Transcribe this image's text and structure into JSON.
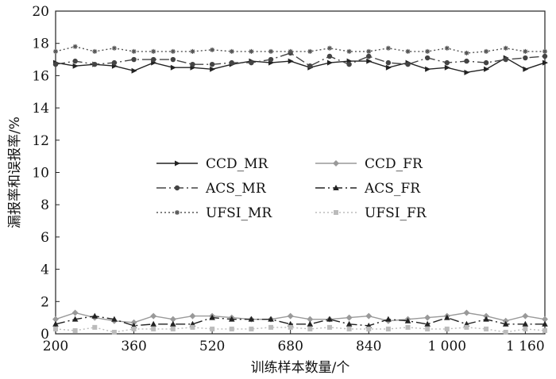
{
  "chart_data": {
    "type": "line",
    "xlabel": "训练样本数量/个",
    "ylabel": "漏报率和误报率/%",
    "xlim": [
      200,
      1200
    ],
    "ylim": [
      0,
      20
    ],
    "x_ticks": [
      200,
      360,
      520,
      680,
      840,
      1000,
      1160
    ],
    "x_tick_labels": [
      "200",
      "360",
      "520",
      "680",
      "840",
      "1 000",
      "1 160"
    ],
    "y_ticks": [
      0,
      2,
      4,
      6,
      8,
      10,
      12,
      14,
      16,
      18,
      20
    ],
    "y_tick_labels": [
      "0",
      "2",
      "4",
      "6",
      "8",
      "10",
      "12",
      "14",
      "16",
      "18",
      "20"
    ],
    "grid": false,
    "legend_position": "center-left",
    "x": [
      200,
      240,
      280,
      320,
      360,
      400,
      440,
      480,
      520,
      560,
      600,
      640,
      680,
      720,
      760,
      800,
      840,
      880,
      920,
      960,
      1000,
      1040,
      1080,
      1120,
      1160,
      1200
    ],
    "series": [
      {
        "name": "CCD_MR",
        "color": "#222222",
        "dash": "",
        "marker": "tri-right",
        "values": [
          16.8,
          16.6,
          16.7,
          16.6,
          16.3,
          16.8,
          16.5,
          16.5,
          16.4,
          16.7,
          16.9,
          16.8,
          16.9,
          16.5,
          16.8,
          16.9,
          16.9,
          16.5,
          16.8,
          16.4,
          16.5,
          16.2,
          16.4,
          17.1,
          16.4,
          16.8
        ]
      },
      {
        "name": "CCD_FR",
        "color": "#999999",
        "dash": "",
        "marker": "diamond",
        "values": [
          0.9,
          1.3,
          1.0,
          0.8,
          0.7,
          1.1,
          0.9,
          1.1,
          1.1,
          1.0,
          0.9,
          0.9,
          1.1,
          0.9,
          0.9,
          1.0,
          1.1,
          0.8,
          0.9,
          1.0,
          1.1,
          1.3,
          1.1,
          0.8,
          1.1,
          0.9
        ]
      },
      {
        "name": "ACS_MR",
        "color": "#444444",
        "dash": "12,4,2,4",
        "marker": "circle",
        "values": [
          16.7,
          16.9,
          16.7,
          16.8,
          17.0,
          17.0,
          17.0,
          16.7,
          16.7,
          16.8,
          16.8,
          17.0,
          17.4,
          16.6,
          17.2,
          16.7,
          17.2,
          16.8,
          16.7,
          17.1,
          16.8,
          16.9,
          16.8,
          17.0,
          17.1,
          17.2
        ]
      },
      {
        "name": "ACS_FR",
        "color": "#222222",
        "dash": "12,4,2,4",
        "marker": "triangle",
        "values": [
          0.6,
          0.9,
          1.1,
          0.9,
          0.5,
          0.6,
          0.6,
          0.6,
          1.0,
          0.9,
          0.9,
          0.9,
          0.6,
          0.6,
          0.9,
          0.6,
          0.5,
          0.9,
          0.8,
          0.6,
          1.0,
          0.6,
          0.9,
          0.6,
          0.6,
          0.6
        ]
      },
      {
        "name": "UFSI_MR",
        "color": "#555555",
        "dash": "2,3",
        "marker": "star",
        "values": [
          17.5,
          17.8,
          17.5,
          17.7,
          17.5,
          17.5,
          17.5,
          17.5,
          17.6,
          17.5,
          17.5,
          17.5,
          17.5,
          17.5,
          17.7,
          17.5,
          17.5,
          17.7,
          17.5,
          17.5,
          17.7,
          17.4,
          17.5,
          17.7,
          17.5,
          17.5
        ]
      },
      {
        "name": "UFSI_FR",
        "color": "#bbbbbb",
        "dash": "2,3",
        "marker": "square",
        "values": [
          0.3,
          0.2,
          0.4,
          0.1,
          0.3,
          0.3,
          0.3,
          0.4,
          0.3,
          0.3,
          0.3,
          0.4,
          0.4,
          0.3,
          0.4,
          0.3,
          0.3,
          0.3,
          0.4,
          0.3,
          0.3,
          0.4,
          0.3,
          0.1,
          0.3,
          0.2
        ]
      }
    ],
    "legend_order": [
      0,
      1,
      2,
      3,
      4,
      5
    ]
  }
}
